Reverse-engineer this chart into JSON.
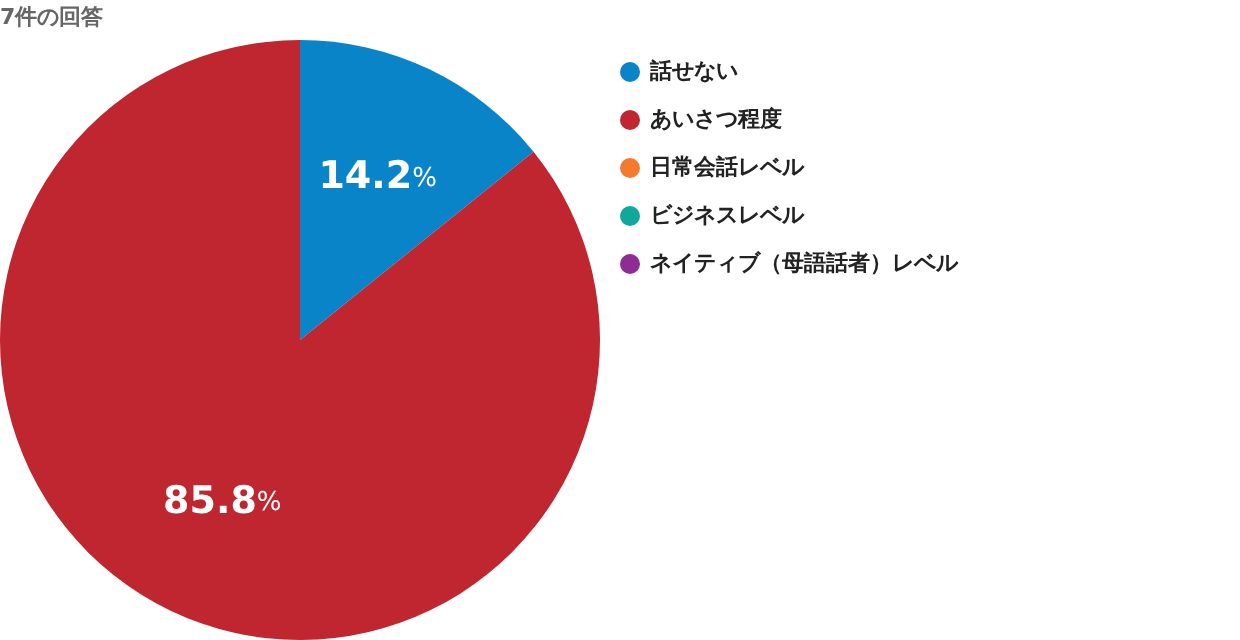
{
  "chart_data": {
    "type": "pie",
    "title": "7件の回答",
    "categories": [
      "話せない",
      "あいさつ程度",
      "日常会話レベル",
      "ビジネスレベル",
      "ネイティブ（母語話者）レベル"
    ],
    "values": [
      14.2,
      85.8,
      0,
      0,
      0
    ],
    "colors": [
      "#0a84c8",
      "#c0262f",
      "#f47a30",
      "#10a89c",
      "#8e2c94"
    ],
    "value_labels": [
      "14.2%",
      "85.8%",
      null,
      null,
      null
    ],
    "legend": "right"
  }
}
